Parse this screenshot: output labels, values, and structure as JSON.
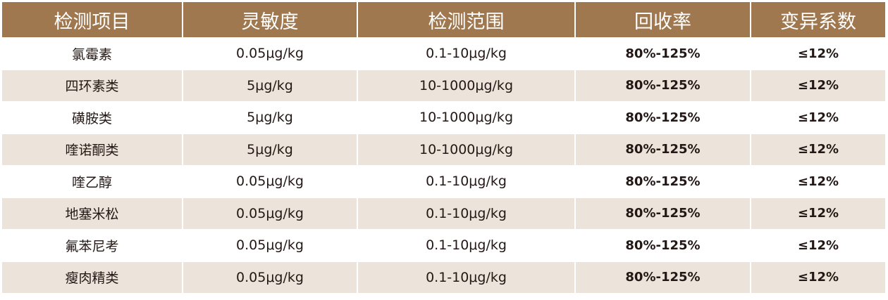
{
  "table": {
    "header_color": "#a07850",
    "alt_row_color": "#ece3da",
    "columns": [
      "检测项目",
      "灵敏度",
      "检测范围",
      "回收率",
      "变异系数"
    ],
    "rows": [
      [
        "氯霉素",
        "0.05μg/kg",
        "0.1-10μg/kg",
        "80%-125%",
        "≤12%"
      ],
      [
        "四环素类",
        "5μg/kg",
        "10-1000μg/kg",
        "80%-125%",
        "≤12%"
      ],
      [
        "磺胺类",
        "5μg/kg",
        "10-1000μg/kg",
        "80%-125%",
        "≤12%"
      ],
      [
        "喹诺酮类",
        "5μg/kg",
        "10-1000μg/kg",
        "80%-125%",
        "≤12%"
      ],
      [
        "喹乙醇",
        "0.05μg/kg",
        "0.1-10μg/kg",
        "80%-125%",
        "≤12%"
      ],
      [
        "地塞米松",
        "0.05μg/kg",
        "0.1-10μg/kg",
        "80%-125%",
        "≤12%"
      ],
      [
        "氟苯尼考",
        "0.05μg/kg",
        "0.1-10μg/kg",
        "80%-125%",
        "≤12%"
      ],
      [
        "瘦肉精类",
        "0.05μg/kg",
        "0.1-10μg/kg",
        "80%-125%",
        "≤12%"
      ]
    ]
  }
}
